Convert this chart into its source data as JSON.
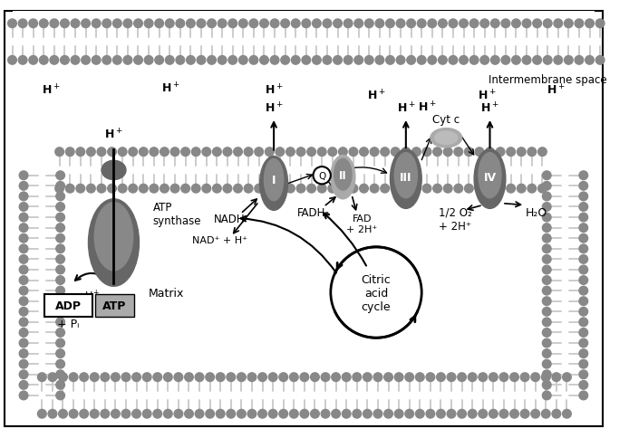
{
  "bg": "#ffffff",
  "hc": "#888888",
  "tc": "#cccccc",
  "pd": "#666666",
  "pm": "#888888",
  "pl": "#aaaaaa",
  "intermembrane_label": "Intermembrane space",
  "matrix_label": "Matrix",
  "atp_synthase_label": "ATP\nsynthase",
  "atp_label": "ATP",
  "adp_label": "ADP",
  "pi_label": "+ Pᵢ",
  "nadh_label": "NADH",
  "nad_label": "NAD⁺ + H⁺",
  "fadh2_label": "FADH₂",
  "fad_label": "FAD\n+ 2H⁺",
  "o2_label": "1/2 O₂\n+ 2H⁺",
  "h2o_label": "H₂O",
  "cytc_label": "Cyt c",
  "citric_label": "Citric\nacid\ncycle",
  "c1": "I",
  "c2": "II",
  "c3": "III",
  "c4": "IV"
}
